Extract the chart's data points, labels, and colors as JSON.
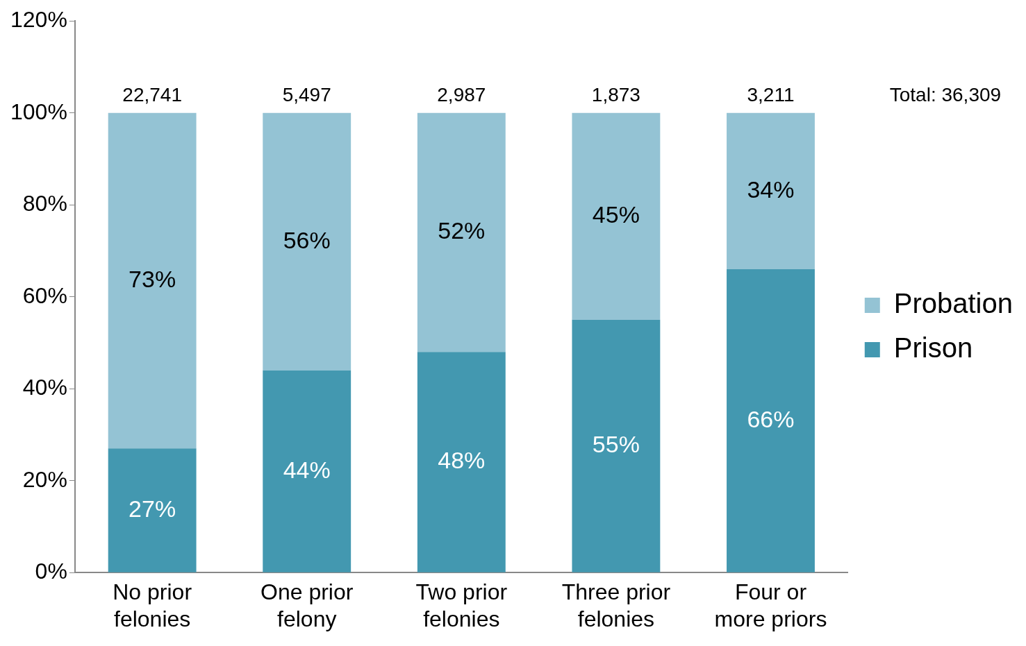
{
  "chart_data": {
    "type": "bar",
    "stacked": true,
    "categories": [
      "No prior felonies",
      "One prior felony",
      "Two prior felonies",
      "Three prior felonies",
      "Four or more priors"
    ],
    "series": [
      {
        "name": "Prison",
        "color": "#4398b0",
        "values": [
          27,
          44,
          48,
          55,
          66
        ],
        "value_labels": [
          "27%",
          "44%",
          "48%",
          "55%",
          "66%"
        ]
      },
      {
        "name": "Probation",
        "color": "#94c3d4",
        "values": [
          73,
          56,
          52,
          45,
          34
        ],
        "value_labels": [
          "73%",
          "56%",
          "52%",
          "45%",
          "34%"
        ]
      }
    ],
    "annotations": [
      {
        "text": "22,741",
        "x": "No prior felonies",
        "y": 100
      },
      {
        "text": "5,497",
        "x": "One prior felony",
        "y": 100
      },
      {
        "text": "2,987",
        "x": "Two prior felonies",
        "y": 100
      },
      {
        "text": "1,873",
        "x": "Three prior felonies",
        "y": 100
      },
      {
        "text": "3,211",
        "x": "Four or more priors",
        "y": 100
      },
      "Total: 36,309"
    ],
    "ylim": [
      0,
      120
    ],
    "yticks": [
      {
        "value": 0,
        "label": "0%"
      },
      {
        "value": 20,
        "label": "20%"
      },
      {
        "value": 40,
        "label": "40%"
      },
      {
        "value": 60,
        "label": "60%"
      },
      {
        "value": 80,
        "label": "80%"
      },
      {
        "value": 100,
        "label": "100%"
      },
      {
        "value": 120,
        "label": "120%"
      }
    ],
    "grid": false,
    "legend": "right"
  }
}
